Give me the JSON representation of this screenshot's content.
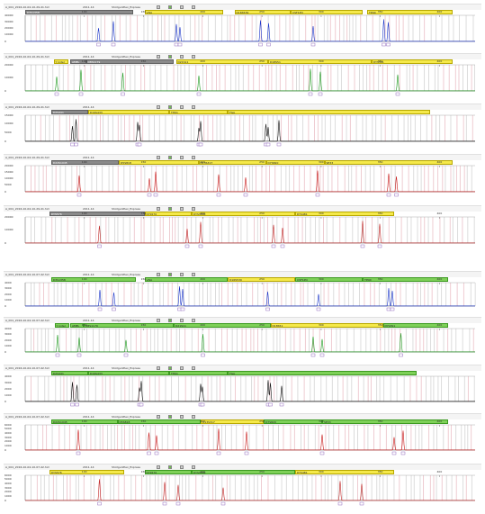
{
  "panels": [
    {
      "name": "A_001_2016-10-04-10-29-41.hid",
      "run": "2011-14",
      "panel_name": "ShotgunPlex_Express",
      "dyes": "blue",
      "color": "#1a35c8",
      "peaks": [
        0.163,
        0.196,
        0.336,
        0.344,
        0.523,
        0.541,
        0.64,
        0.797,
        0.807
      ],
      "markers": [
        {
          "label": "D3S1358",
          "style": "gray",
          "a": 0.0,
          "b": 0.24
        },
        {
          "label": "vWA",
          "style": "yellow",
          "a": 0.265,
          "b": 0.44
        },
        {
          "label": "D16S539",
          "style": "yellow",
          "a": 0.465,
          "b": 0.59
        },
        {
          "label": "CSF1PO",
          "style": "yellow",
          "a": 0.59,
          "b": 0.75
        },
        {
          "label": "TPOX",
          "style": "yellow",
          "a": 0.76,
          "b": 0.95
        }
      ],
      "y_ticks": [
        "40000",
        "30000",
        "20000",
        "10000",
        "0"
      ],
      "x_ticks": [
        "100",
        "150",
        "200",
        "250",
        "300",
        "350",
        "400"
      ]
    },
    {
      "name": "A_001_2016-10-04-10-29-41.hid",
      "run": "2011-14",
      "panel_name": "ShotgunPlex_Express",
      "dyes": "green",
      "color": "#1f9a1f",
      "peaks": [
        0.07,
        0.124,
        0.217,
        0.386,
        0.634,
        0.656,
        0.828
      ],
      "markers": [
        {
          "label": "Y indel",
          "style": "yellow",
          "a": 0.063,
          "b": 0.095
        },
        {
          "label": "AMEL",
          "style": "gray",
          "a": 0.1,
          "b": 0.135
        },
        {
          "label": "D8S1179",
          "style": "gray",
          "a": 0.135,
          "b": 0.33
        },
        {
          "label": "D21S11",
          "style": "yellow",
          "a": 0.335,
          "b": 0.54
        },
        {
          "label": "D18S51",
          "style": "yellow",
          "a": 0.54,
          "b": 0.77
        },
        {
          "label": "DYS391",
          "style": "yellow",
          "a": 0.77,
          "b": 0.95
        }
      ],
      "y_ticks": [
        "20000",
        "10000",
        "0"
      ],
      "x_ticks": [
        "100",
        "150",
        "200",
        "250",
        "300",
        "350",
        "400"
      ]
    },
    {
      "name": "A_001_2016-10-04-10-29-41.hid",
      "run": "2011-14",
      "panel_name": "",
      "dyes": "black",
      "color": "#111111",
      "peaks": [
        0.105,
        0.113,
        0.25,
        0.254,
        0.386,
        0.39,
        0.535,
        0.54,
        0.564
      ],
      "markers": [
        {
          "label": "D2S441",
          "style": "gray",
          "a": 0.058,
          "b": 0.14
        },
        {
          "label": "D19S433",
          "style": "yellow",
          "a": 0.14,
          "b": 0.32
        },
        {
          "label": "TH01",
          "style": "yellow",
          "a": 0.32,
          "b": 0.45
        },
        {
          "label": "FGA",
          "style": "yellow",
          "a": 0.45,
          "b": 0.9
        }
      ],
      "y_ticks": [
        "15000",
        "10000",
        "5000",
        "0"
      ],
      "x_ticks": []
    },
    {
      "name": "A_001_2016-10-04-10-29-41.hid",
      "run": "2011-14",
      "panel_name": "",
      "dyes": "red",
      "color": "#c81a1a",
      "peaks": [
        0.12,
        0.276,
        0.29,
        0.43,
        0.49,
        0.65,
        0.808,
        0.825
      ],
      "markers": [
        {
          "label": "D22S1045",
          "style": "gray",
          "a": 0.058,
          "b": 0.208
        },
        {
          "label": "D5S818",
          "style": "yellow",
          "a": 0.208,
          "b": 0.385
        },
        {
          "label": "D13S317",
          "style": "yellow",
          "a": 0.385,
          "b": 0.535
        },
        {
          "label": "D7S820",
          "style": "yellow",
          "a": 0.535,
          "b": 0.665
        },
        {
          "label": "SE33",
          "style": "yellow",
          "a": 0.665,
          "b": 0.95
        }
      ],
      "y_ticks": [
        "20000",
        "15000",
        "10000",
        "5000",
        "0"
      ],
      "x_ticks": [
        "100",
        "150",
        "200",
        "250",
        "300",
        "350",
        "400"
      ]
    },
    {
      "name": "A_001_2016-10-04-10-29-41.hid",
      "run": "2011-14",
      "panel_name": "ShotgunPlex_Express",
      "dyes": "purple-red",
      "color": "#c02828",
      "peaks": [
        0.165,
        0.36,
        0.39,
        0.552,
        0.572,
        0.75,
        0.788
      ],
      "markers": [
        {
          "label": "DYS576",
          "style": "gray",
          "a": 0.054,
          "b": 0.265
        },
        {
          "label": "DYS570",
          "style": "yellow",
          "a": 0.265,
          "b": 0.37
        },
        {
          "label": "DYS389II",
          "style": "yellow",
          "a": 0.37,
          "b": 0.6
        },
        {
          "label": "DYS481",
          "style": "yellow",
          "a": 0.6,
          "b": 0.82
        }
      ],
      "y_ticks": [
        "20000",
        "10000",
        "0"
      ],
      "x_ticks": [
        "100",
        "150",
        "200",
        "250",
        "300",
        "350",
        "400"
      ]
    },
    {
      "name": "A_001_2016-10-04-10-07-42.hid",
      "run": "2011-14",
      "panel_name": "ShotgunPlex_Express",
      "dyes": "blue",
      "color": "#1a35c8",
      "peaks": [
        0.166,
        0.197,
        0.343,
        0.35,
        0.539,
        0.652,
        0.808,
        0.816
      ],
      "markers": [
        {
          "label": "D3S1358",
          "style": "green",
          "a": 0.058,
          "b": 0.245
        },
        {
          "label": "vWA",
          "style": "green",
          "a": 0.265,
          "b": 0.45
        },
        {
          "label": "D16S539",
          "style": "yellow",
          "a": 0.45,
          "b": 0.6
        },
        {
          "label": "CSF1PO",
          "style": "green",
          "a": 0.6,
          "b": 0.75
        },
        {
          "label": "TPOX",
          "style": "green",
          "a": 0.75,
          "b": 0.94
        }
      ],
      "y_ticks": [
        "4000",
        "3000",
        "2000",
        "1000",
        "0"
      ],
      "x_ticks": [
        "100",
        "150",
        "200",
        "250",
        "300",
        "350",
        "400"
      ]
    },
    {
      "name": "A_001_2016-10-04-10-07-42.hid",
      "run": "2011-14",
      "panel_name": "ShotgunPlex_Express",
      "dyes": "green",
      "color": "#1f9a1f",
      "peaks": [
        0.072,
        0.12,
        0.224,
        0.395,
        0.64,
        0.66,
        0.835
      ],
      "markers": [
        {
          "label": "Y indel",
          "style": "green",
          "a": 0.065,
          "b": 0.098
        },
        {
          "label": "AMEL",
          "style": "green",
          "a": 0.1,
          "b": 0.13
        },
        {
          "label": "D8S1179",
          "style": "green",
          "a": 0.13,
          "b": 0.33
        },
        {
          "label": "D21S11",
          "style": "green",
          "a": 0.33,
          "b": 0.545
        },
        {
          "label": "D18S51",
          "style": "yellow",
          "a": 0.545,
          "b": 0.795
        },
        {
          "label": "DYS391",
          "style": "green",
          "a": 0.795,
          "b": 0.94
        }
      ],
      "y_ticks": [
        "4000",
        "3000",
        "2000",
        "1000",
        "0"
      ],
      "x_ticks": [
        "100",
        "150",
        "200",
        "250",
        "300",
        "350",
        "400"
      ]
    },
    {
      "name": "A_001_2016-10-04-10-07-42.hid",
      "run": "2011-14",
      "panel_name": "ShotgunPlex_Express",
      "dyes": "black",
      "color": "#111111",
      "peaks": [
        0.105,
        0.115,
        0.254,
        0.258,
        0.39,
        0.394,
        0.54,
        0.545,
        0.57
      ],
      "markers": [
        {
          "label": "D2S441",
          "style": "green",
          "a": 0.058,
          "b": 0.14
        },
        {
          "label": "D19S433",
          "style": "green",
          "a": 0.14,
          "b": 0.32
        },
        {
          "label": "TH01",
          "style": "green",
          "a": 0.32,
          "b": 0.45
        },
        {
          "label": "FGA",
          "style": "green",
          "a": 0.45,
          "b": 0.87
        }
      ],
      "y_ticks": [
        "4000",
        "3000",
        "2000",
        "1000",
        "0"
      ],
      "x_ticks": []
    },
    {
      "name": "A_001_2016-10-04-10-07-42.hid",
      "run": "2011-14",
      "panel_name": "ShotgunPlex_Express",
      "dyes": "red",
      "color": "#c81a1a",
      "peaks": [
        0.118,
        0.275,
        0.292,
        0.43,
        0.492,
        0.66,
        0.82,
        0.84
      ],
      "markers": [
        {
          "label": "D22S1045",
          "style": "green",
          "a": 0.058,
          "b": 0.205
        },
        {
          "label": "D5S818",
          "style": "green",
          "a": 0.205,
          "b": 0.39
        },
        {
          "label": "D13S317",
          "style": "yellow",
          "a": 0.39,
          "b": 0.53
        },
        {
          "label": "D7S820",
          "style": "green",
          "a": 0.53,
          "b": 0.66
        },
        {
          "label": "SE33",
          "style": "green",
          "a": 0.66,
          "b": 0.94
        }
      ],
      "y_ticks": [
        "6000",
        "5000",
        "4000",
        "3000",
        "2000",
        "1000",
        "0"
      ],
      "x_ticks": [
        "100",
        "150",
        "200",
        "250",
        "300",
        "350",
        "400"
      ]
    },
    {
      "name": "A_001_2016-10-04-10-07-42.hid",
      "run": "2011-14",
      "panel_name": "ShotgunPlex_Express",
      "dyes": "purple-red",
      "color": "#c02828",
      "peaks": [
        0.165,
        0.31,
        0.34,
        0.44,
        0.7,
        0.748
      ],
      "markers": [
        {
          "label": "DYS576",
          "style": "yellow",
          "a": 0.054,
          "b": 0.22
        },
        {
          "label": "DYS570",
          "style": "green",
          "a": 0.265,
          "b": 0.37
        },
        {
          "label": "DYS389II",
          "style": "green",
          "a": 0.37,
          "b": 0.6
        },
        {
          "label": "DYS481",
          "style": "yellow",
          "a": 0.6,
          "b": 0.82
        }
      ],
      "y_ticks": [
        "6000",
        "5000",
        "4000",
        "3000",
        "2000",
        "1000",
        "0"
      ],
      "x_ticks": [
        "100",
        "150",
        "200",
        "250",
        "300",
        "350",
        "400"
      ]
    }
  ]
}
